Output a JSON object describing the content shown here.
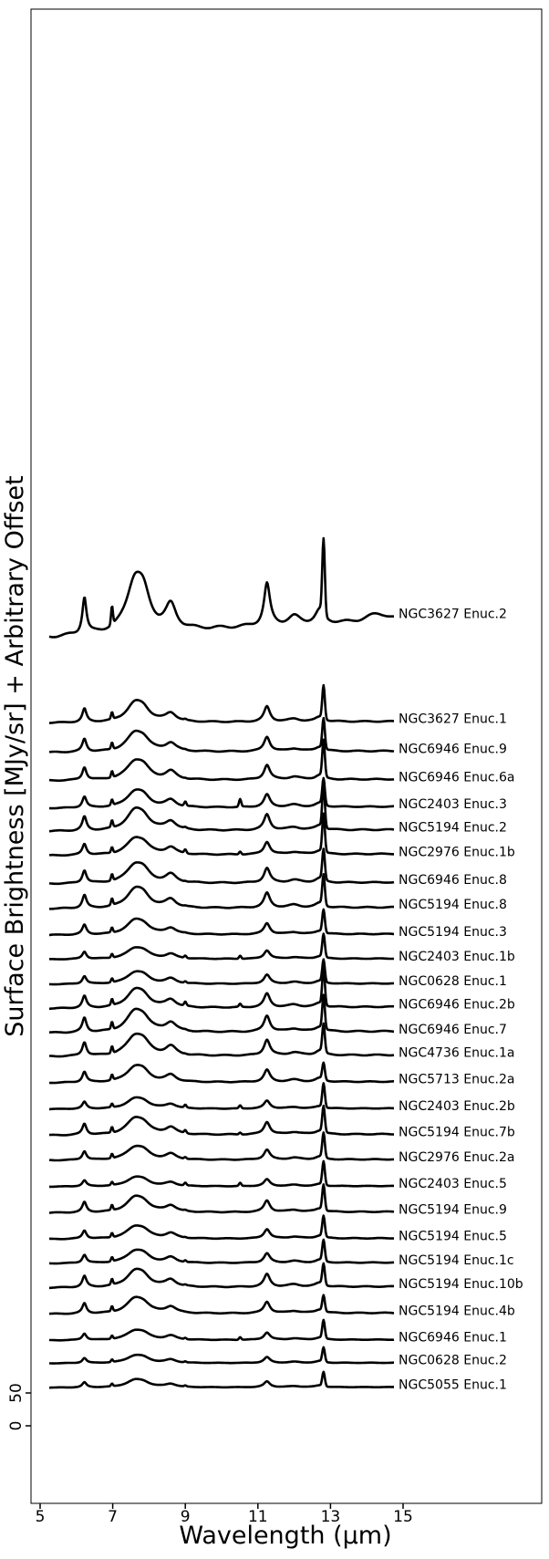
{
  "chart_data": {
    "type": "line",
    "title": "",
    "xlabel": "Wavelength (μm)",
    "ylabel": "Surface Brightness [MJy/sr] + Arbitrary Offset",
    "xlim": [
      4.8,
      19
    ],
    "xticks": [
      5,
      7,
      9,
      11,
      13,
      15
    ],
    "yticks": [
      0,
      50
    ],
    "grid": false,
    "legend": "none",
    "line_color": "#000000",
    "series": [
      {
        "name": "NGC3627 Enuc.2",
        "offset": 1200,
        "scale": 4.0,
        "pah": 1.0,
        "neii": 1.3,
        "s9": 0.0,
        "s105": 0.0,
        "cont": 1.2,
        "silicate": 0.6
      },
      {
        "name": "NGC3627 Enuc.1",
        "offset": 1070,
        "scale": 1.45,
        "pah": 1.0,
        "neii": 1.6,
        "s9": 0.1,
        "s105": 0.0,
        "cont": 0.3,
        "silicate": 0.0
      },
      {
        "name": "NGC6946 Enuc.9",
        "offset": 1025,
        "scale": 1.4,
        "pah": 1.0,
        "neii": 1.5,
        "s9": 0.05,
        "s105": 0.0,
        "cont": 0.3,
        "silicate": 0.0
      },
      {
        "name": "NGC6946 Enuc.6a",
        "offset": 982,
        "scale": 1.4,
        "pah": 1.0,
        "neii": 1.8,
        "s9": 0.05,
        "s105": 0.0,
        "cont": 0.3,
        "silicate": 0.0
      },
      {
        "name": "NGC2403 Enuc.3",
        "offset": 940,
        "scale": 1.2,
        "pah": 1.0,
        "neii": 1.5,
        "s9": 0.6,
        "s105": 0.8,
        "cont": 0.4,
        "silicate": 0.0
      },
      {
        "name": "NGC5194 Enuc.2",
        "offset": 905,
        "scale": 1.5,
        "pah": 1.0,
        "neii": 2.0,
        "s9": 0.1,
        "s105": 0.0,
        "cont": 0.3,
        "silicate": 0.0
      },
      {
        "name": "NGC2976 Enuc.1b",
        "offset": 868,
        "scale": 1.2,
        "pah": 1.0,
        "neii": 2.2,
        "s9": 0.5,
        "s105": 0.3,
        "cont": 0.4,
        "silicate": 0.0
      },
      {
        "name": "NGC6946 Enuc.8",
        "offset": 825,
        "scale": 1.4,
        "pah": 1.0,
        "neii": 1.5,
        "s9": 0.05,
        "s105": 0.0,
        "cont": 0.3,
        "silicate": 0.0
      },
      {
        "name": "NGC5194 Enuc.8",
        "offset": 787,
        "scale": 1.4,
        "pah": 1.0,
        "neii": 1.5,
        "s9": 0.05,
        "s105": 0.0,
        "cont": 0.3,
        "silicate": 0.0
      },
      {
        "name": "NGC5194 Enuc.3",
        "offset": 747,
        "scale": 1.05,
        "pah": 1.0,
        "neii": 1.5,
        "s9": 0.05,
        "s105": 0.0,
        "cont": 0.3,
        "silicate": 0.0
      },
      {
        "name": "NGC2403 Enuc.1b",
        "offset": 710,
        "scale": 0.8,
        "pah": 1.0,
        "neii": 2.0,
        "s9": 0.5,
        "s105": 0.5,
        "cont": 0.3,
        "silicate": 0.0
      },
      {
        "name": "NGC0628 Enuc.1",
        "offset": 672,
        "scale": 0.85,
        "pah": 1.0,
        "neii": 1.8,
        "s9": 0.3,
        "s105": 0.0,
        "cont": 0.3,
        "silicate": 0.0
      },
      {
        "name": "NGC6946 Enuc.2b",
        "offset": 635,
        "scale": 1.3,
        "pah": 1.0,
        "neii": 2.0,
        "s9": 0.5,
        "s105": 0.3,
        "cont": 0.4,
        "silicate": 0.0
      },
      {
        "name": "NGC6946 Enuc.7",
        "offset": 598,
        "scale": 1.55,
        "pah": 1.0,
        "neii": 1.5,
        "s9": 0.05,
        "s105": 0.0,
        "cont": 0.3,
        "silicate": 0.0
      },
      {
        "name": "NGC4736 Enuc.1a",
        "offset": 562,
        "scale": 1.5,
        "pah": 1.0,
        "neii": 1.3,
        "s9": 0.05,
        "s105": 0.0,
        "cont": 0.3,
        "silicate": 0.0
      },
      {
        "name": "NGC5713 Enuc.2a",
        "offset": 522,
        "scale": 1.15,
        "pah": 1.0,
        "neii": 1.0,
        "s9": 0.0,
        "s105": 0.0,
        "cont": 0.3,
        "silicate": 0.0
      },
      {
        "name": "NGC2403 Enuc.2b",
        "offset": 482,
        "scale": 0.75,
        "pah": 1.0,
        "neii": 2.2,
        "s9": 0.6,
        "s105": 0.5,
        "cont": 0.3,
        "silicate": 0.0
      },
      {
        "name": "NGC5194 Enuc.7b",
        "offset": 442,
        "scale": 1.2,
        "pah": 1.0,
        "neii": 1.5,
        "s9": 0.4,
        "s105": 0.2,
        "cont": 0.3,
        "silicate": 0.0
      },
      {
        "name": "NGC2976 Enuc.2a",
        "offset": 404,
        "scale": 0.95,
        "pah": 1.0,
        "neii": 1.8,
        "s9": 0.3,
        "s105": 0.0,
        "cont": 0.3,
        "silicate": 0.0
      },
      {
        "name": "NGC2403 Enuc.5",
        "offset": 364,
        "scale": 0.65,
        "pah": 1.0,
        "neii": 2.5,
        "s9": 0.7,
        "s105": 0.6,
        "cont": 0.3,
        "silicate": 0.0
      },
      {
        "name": "NGC5194 Enuc.9",
        "offset": 324,
        "scale": 1.1,
        "pah": 1.0,
        "neii": 1.6,
        "s9": 0.1,
        "s105": 0.0,
        "cont": 0.3,
        "silicate": 0.0
      },
      {
        "name": "NGC5194 Enuc.5",
        "offset": 284,
        "scale": 0.9,
        "pah": 1.0,
        "neii": 1.6,
        "s9": 0.1,
        "s105": 0.0,
        "cont": 0.3,
        "silicate": 0.0
      },
      {
        "name": "NGC5194 Enuc.1c",
        "offset": 247,
        "scale": 0.9,
        "pah": 1.0,
        "neii": 1.6,
        "s9": 0.3,
        "s105": 0.0,
        "cont": 0.3,
        "silicate": 0.0
      },
      {
        "name": "NGC5194 Enuc.10b",
        "offset": 210,
        "scale": 1.2,
        "pah": 1.0,
        "neii": 1.2,
        "s9": 0.1,
        "s105": 0.0,
        "cont": 0.3,
        "silicate": 0.0
      },
      {
        "name": "NGC5194 Enuc.4b",
        "offset": 170,
        "scale": 1.1,
        "pah": 1.0,
        "neii": 1.0,
        "s9": 0.0,
        "s105": 0.0,
        "cont": 0.3,
        "silicate": 0.0
      },
      {
        "name": "NGC6946 Enuc.1",
        "offset": 130,
        "scale": 0.7,
        "pah": 1.0,
        "neii": 1.8,
        "s9": 0.3,
        "s105": 0.5,
        "cont": 0.3,
        "silicate": 0.0
      },
      {
        "name": "NGC0628 Enuc.2",
        "offset": 95,
        "scale": 0.55,
        "pah": 1.0,
        "neii": 1.8,
        "s9": 0.3,
        "s105": 0.0,
        "cont": 0.3,
        "silicate": 0.0
      },
      {
        "name": "NGC5055 Enuc.1",
        "offset": 58,
        "scale": 0.55,
        "pah": 1.0,
        "neii": 1.8,
        "s9": 0.3,
        "s105": 0.0,
        "cont": 0.3,
        "silicate": 0.0
      }
    ]
  }
}
